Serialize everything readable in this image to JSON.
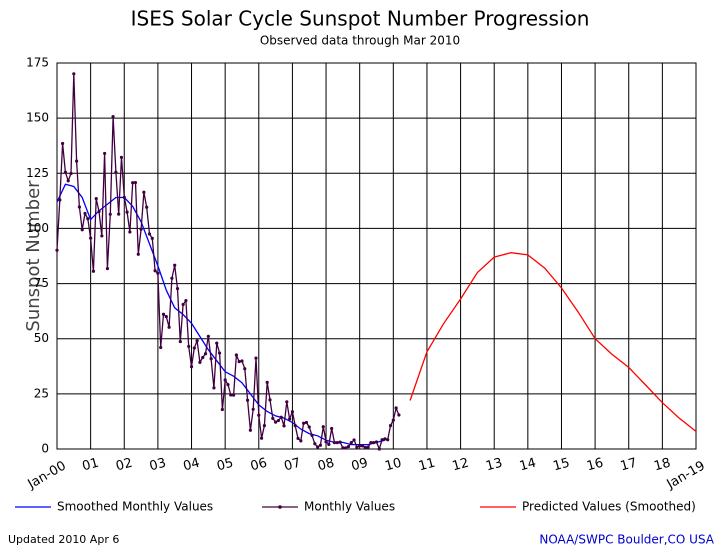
{
  "chart_data": {
    "type": "line",
    "title": "ISES Solar Cycle Sunspot Number Progression",
    "subtitle": "Observed data through Mar 2010",
    "y_label": "Sunspot Number",
    "updated": "Updated 2010 Apr  6",
    "source": "NOAA/SWPC Boulder,CO USA",
    "xlim": [
      0,
      228
    ],
    "xticks": [
      {
        "value": 0,
        "label": "Jan-00"
      },
      {
        "value": 12,
        "label": "01"
      },
      {
        "value": 24,
        "label": "02"
      },
      {
        "value": 36,
        "label": "03"
      },
      {
        "value": 48,
        "label": "04"
      },
      {
        "value": 60,
        "label": "05"
      },
      {
        "value": 72,
        "label": "06"
      },
      {
        "value": 84,
        "label": "07"
      },
      {
        "value": 96,
        "label": "08"
      },
      {
        "value": 108,
        "label": "09"
      },
      {
        "value": 120,
        "label": "10"
      },
      {
        "value": 132,
        "label": "11"
      },
      {
        "value": 144,
        "label": "12"
      },
      {
        "value": 156,
        "label": "13"
      },
      {
        "value": 168,
        "label": "14"
      },
      {
        "value": 180,
        "label": "15"
      },
      {
        "value": 192,
        "label": "16"
      },
      {
        "value": 204,
        "label": "17"
      },
      {
        "value": 216,
        "label": "18"
      },
      {
        "value": 228,
        "label": "Jan-19"
      }
    ],
    "ylim": [
      0,
      175
    ],
    "yticks": [
      0,
      25,
      50,
      75,
      100,
      125,
      150,
      175
    ],
    "grid": true,
    "series": [
      {
        "name": "Smoothed Monthly Values",
        "color": "#0000ff",
        "markers": false,
        "x": [
          0,
          3,
          6,
          9,
          12,
          15,
          18,
          21,
          24,
          27,
          30,
          33,
          36,
          39,
          42,
          45,
          48,
          51,
          54,
          57,
          60,
          63,
          66,
          69,
          72,
          75,
          78,
          81,
          84,
          87,
          90,
          93,
          96,
          99,
          102,
          105,
          108,
          111,
          114,
          117
        ],
        "values": [
          112,
          120,
          119,
          114,
          104,
          108,
          111,
          114,
          114,
          110,
          103,
          93,
          83,
          72,
          64,
          61,
          57,
          51,
          45,
          40,
          35,
          33,
          30,
          25,
          20,
          17,
          15,
          14,
          12,
          9,
          7,
          6,
          4,
          3,
          3,
          2,
          2,
          2,
          3,
          4
        ]
      },
      {
        "name": "Monthly Values",
        "color": "#400040",
        "markers": true,
        "x": [
          0,
          1,
          2,
          3,
          4,
          5,
          6,
          7,
          8,
          9,
          10,
          11,
          12,
          13,
          14,
          15,
          16,
          17,
          18,
          19,
          20,
          21,
          22,
          23,
          24,
          25,
          26,
          27,
          28,
          29,
          30,
          31,
          32,
          33,
          34,
          35,
          36,
          37,
          38,
          39,
          40,
          41,
          42,
          43,
          44,
          45,
          46,
          47,
          48,
          49,
          50,
          51,
          52,
          53,
          54,
          55,
          56,
          57,
          58,
          59,
          60,
          61,
          62,
          63,
          64,
          65,
          66,
          67,
          68,
          69,
          70,
          71,
          72,
          73,
          74,
          75,
          76,
          77,
          78,
          79,
          80,
          81,
          82,
          83,
          84,
          85,
          86,
          87,
          88,
          89,
          90,
          91,
          92,
          93,
          94,
          95,
          96,
          97,
          98,
          99,
          100,
          101,
          102,
          103,
          104,
          105,
          106,
          107,
          108,
          109,
          110,
          111,
          112,
          113,
          114,
          115,
          116,
          117,
          118,
          119,
          120,
          121,
          122
        ],
        "values": [
          90.1,
          112.9,
          138.5,
          125.5,
          121.6,
          124.9,
          170.1,
          130.5,
          109.7,
          99.4,
          106.8,
          104.4,
          95.6,
          80.6,
          113.5,
          107.7,
          96.6,
          134.0,
          81.8,
          106.4,
          150.7,
          125.5,
          106.5,
          132.2,
          114.1,
          107.4,
          98.4,
          120.7,
          120.8,
          88.3,
          99.6,
          116.4,
          109.6,
          97.5,
          95.5,
          80.8,
          79.7,
          46.0,
          61.1,
          60.0,
          55.2,
          77.4,
          83.3,
          72.7,
          48.7,
          65.5,
          67.3,
          46.5,
          37.3,
          45.8,
          49.1,
          39.3,
          41.5,
          43.2,
          51.1,
          40.9,
          27.7,
          48.0,
          43.5,
          17.9,
          31.3,
          29.2,
          24.5,
          24.4,
          42.6,
          39.6,
          39.9,
          36.4,
          22.1,
          8.5,
          18.0,
          41.2,
          15.3,
          4.9,
          10.6,
          30.2,
          22.3,
          13.9,
          12.2,
          12.9,
          14.4,
          10.5,
          21.4,
          13.6,
          16.9,
          10.6,
          4.8,
          3.7,
          11.7,
          12.0,
          10.0,
          6.2,
          2.4,
          0.9,
          1.7,
          10.1,
          3.3,
          2.1,
          9.3,
          2.9,
          2.9,
          3.1,
          0.5,
          0.5,
          1.1,
          2.9,
          4.1,
          0.8,
          1.5,
          1.4,
          0.7,
          0.8,
          2.9,
          2.9,
          3.2,
          0.0,
          4.2,
          4.6,
          4.2,
          10.6,
          13.1,
          18.6,
          15.4
        ]
      },
      {
        "name": "Predicted Values (Smoothed)",
        "color": "#ff0000",
        "markers": false,
        "x": [
          126,
          132,
          138,
          144,
          150,
          156,
          162,
          168,
          174,
          180,
          186,
          192,
          198,
          204,
          210,
          216,
          222,
          228
        ],
        "values": [
          22,
          44,
          57,
          68,
          80,
          87,
          89,
          88,
          82,
          73,
          62,
          50,
          43,
          37,
          29,
          21,
          14,
          8
        ]
      }
    ]
  }
}
